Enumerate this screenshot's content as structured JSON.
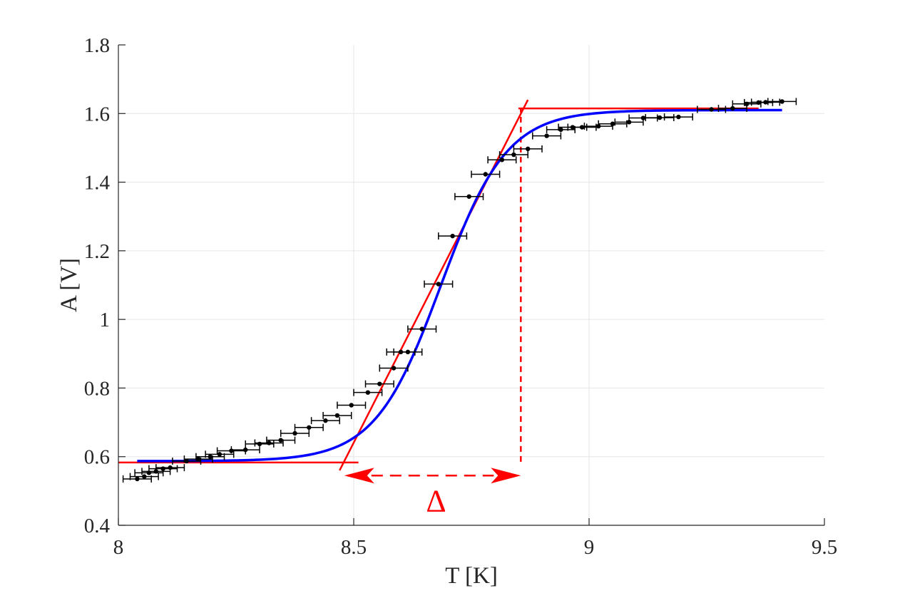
{
  "chart_data": {
    "type": "scatter",
    "xlabel": "T [K]",
    "ylabel": "A [V]",
    "xlim": [
      8,
      9.5
    ],
    "ylim": [
      0.4,
      1.8
    ],
    "xticks": [
      8,
      8.5,
      9,
      9.5
    ],
    "xtick_labels": [
      "8",
      "8.5",
      "9",
      "9.5"
    ],
    "yticks": [
      0.4,
      0.6,
      0.8,
      1,
      1.2,
      1.4,
      1.6,
      1.8
    ],
    "ytick_labels": [
      "0.4",
      "0.6",
      "0.8",
      "1",
      "1.2",
      "1.4",
      "1.6",
      "1.8"
    ],
    "grid": true,
    "colors": {
      "data": "#000000",
      "fit": "#0000ff",
      "guide": "#ff0000",
      "grid": "#e6e6e6",
      "axis": "#262626"
    },
    "measured": {
      "x_error": 0.03,
      "points": [
        [
          8.04,
          0.535
        ],
        [
          8.055,
          0.542
        ],
        [
          8.065,
          0.553
        ],
        [
          8.08,
          0.557
        ],
        [
          8.095,
          0.565
        ],
        [
          8.11,
          0.568
        ],
        [
          8.145,
          0.587
        ],
        [
          8.17,
          0.593
        ],
        [
          8.195,
          0.6
        ],
        [
          8.215,
          0.607
        ],
        [
          8.24,
          0.617
        ],
        [
          8.27,
          0.62
        ],
        [
          8.3,
          0.637
        ],
        [
          8.32,
          0.64
        ],
        [
          8.345,
          0.648
        ],
        [
          8.375,
          0.668
        ],
        [
          8.405,
          0.685
        ],
        [
          8.44,
          0.705
        ],
        [
          8.465,
          0.72
        ],
        [
          8.495,
          0.75
        ],
        [
          8.53,
          0.787
        ],
        [
          8.555,
          0.812
        ],
        [
          8.585,
          0.858
        ],
        [
          8.6,
          0.905
        ],
        [
          8.615,
          0.905
        ],
        [
          8.645,
          0.972
        ],
        [
          8.68,
          1.103
        ],
        [
          8.71,
          1.243
        ],
        [
          8.745,
          1.358
        ],
        [
          8.78,
          1.423
        ],
        [
          8.815,
          1.465
        ],
        [
          8.84,
          1.48
        ],
        [
          8.87,
          1.497
        ],
        [
          8.91,
          1.535
        ],
        [
          8.94,
          1.553
        ],
        [
          8.965,
          1.56
        ],
        [
          8.985,
          1.56
        ],
        [
          9.02,
          1.563
        ],
        [
          9.05,
          1.57
        ],
        [
          9.085,
          1.575
        ],
        [
          9.115,
          1.587
        ],
        [
          9.15,
          1.588
        ],
        [
          9.19,
          1.59
        ],
        [
          9.26,
          1.612
        ],
        [
          9.305,
          1.615
        ],
        [
          9.335,
          1.628
        ],
        [
          9.36,
          1.632
        ],
        [
          9.375,
          1.633
        ],
        [
          9.41,
          1.635
        ]
      ]
    },
    "fit": {
      "form": "sigmoid",
      "x_range": [
        8.04,
        9.41
      ],
      "low": 0.587,
      "high": 1.61,
      "center": 8.685,
      "width": 0.07
    },
    "guides": {
      "lower_level": {
        "y": 0.583,
        "x_range": [
          8.0,
          8.51
        ]
      },
      "upper_level": {
        "y": 1.615,
        "x_range": [
          8.85,
          9.36
        ]
      },
      "slope_line": {
        "x1": 8.47,
        "y1": 0.56,
        "x2": 8.87,
        "y2": 1.64
      },
      "dashed_drop": {
        "x": 8.855,
        "y_range": [
          0.585,
          1.615
        ]
      },
      "delta_arrow": {
        "x1": 8.48,
        "x2": 8.855,
        "y": 0.545
      },
      "delta_label": "Δ",
      "delta_label_pos": {
        "x": 8.675,
        "y": 0.47
      }
    }
  }
}
